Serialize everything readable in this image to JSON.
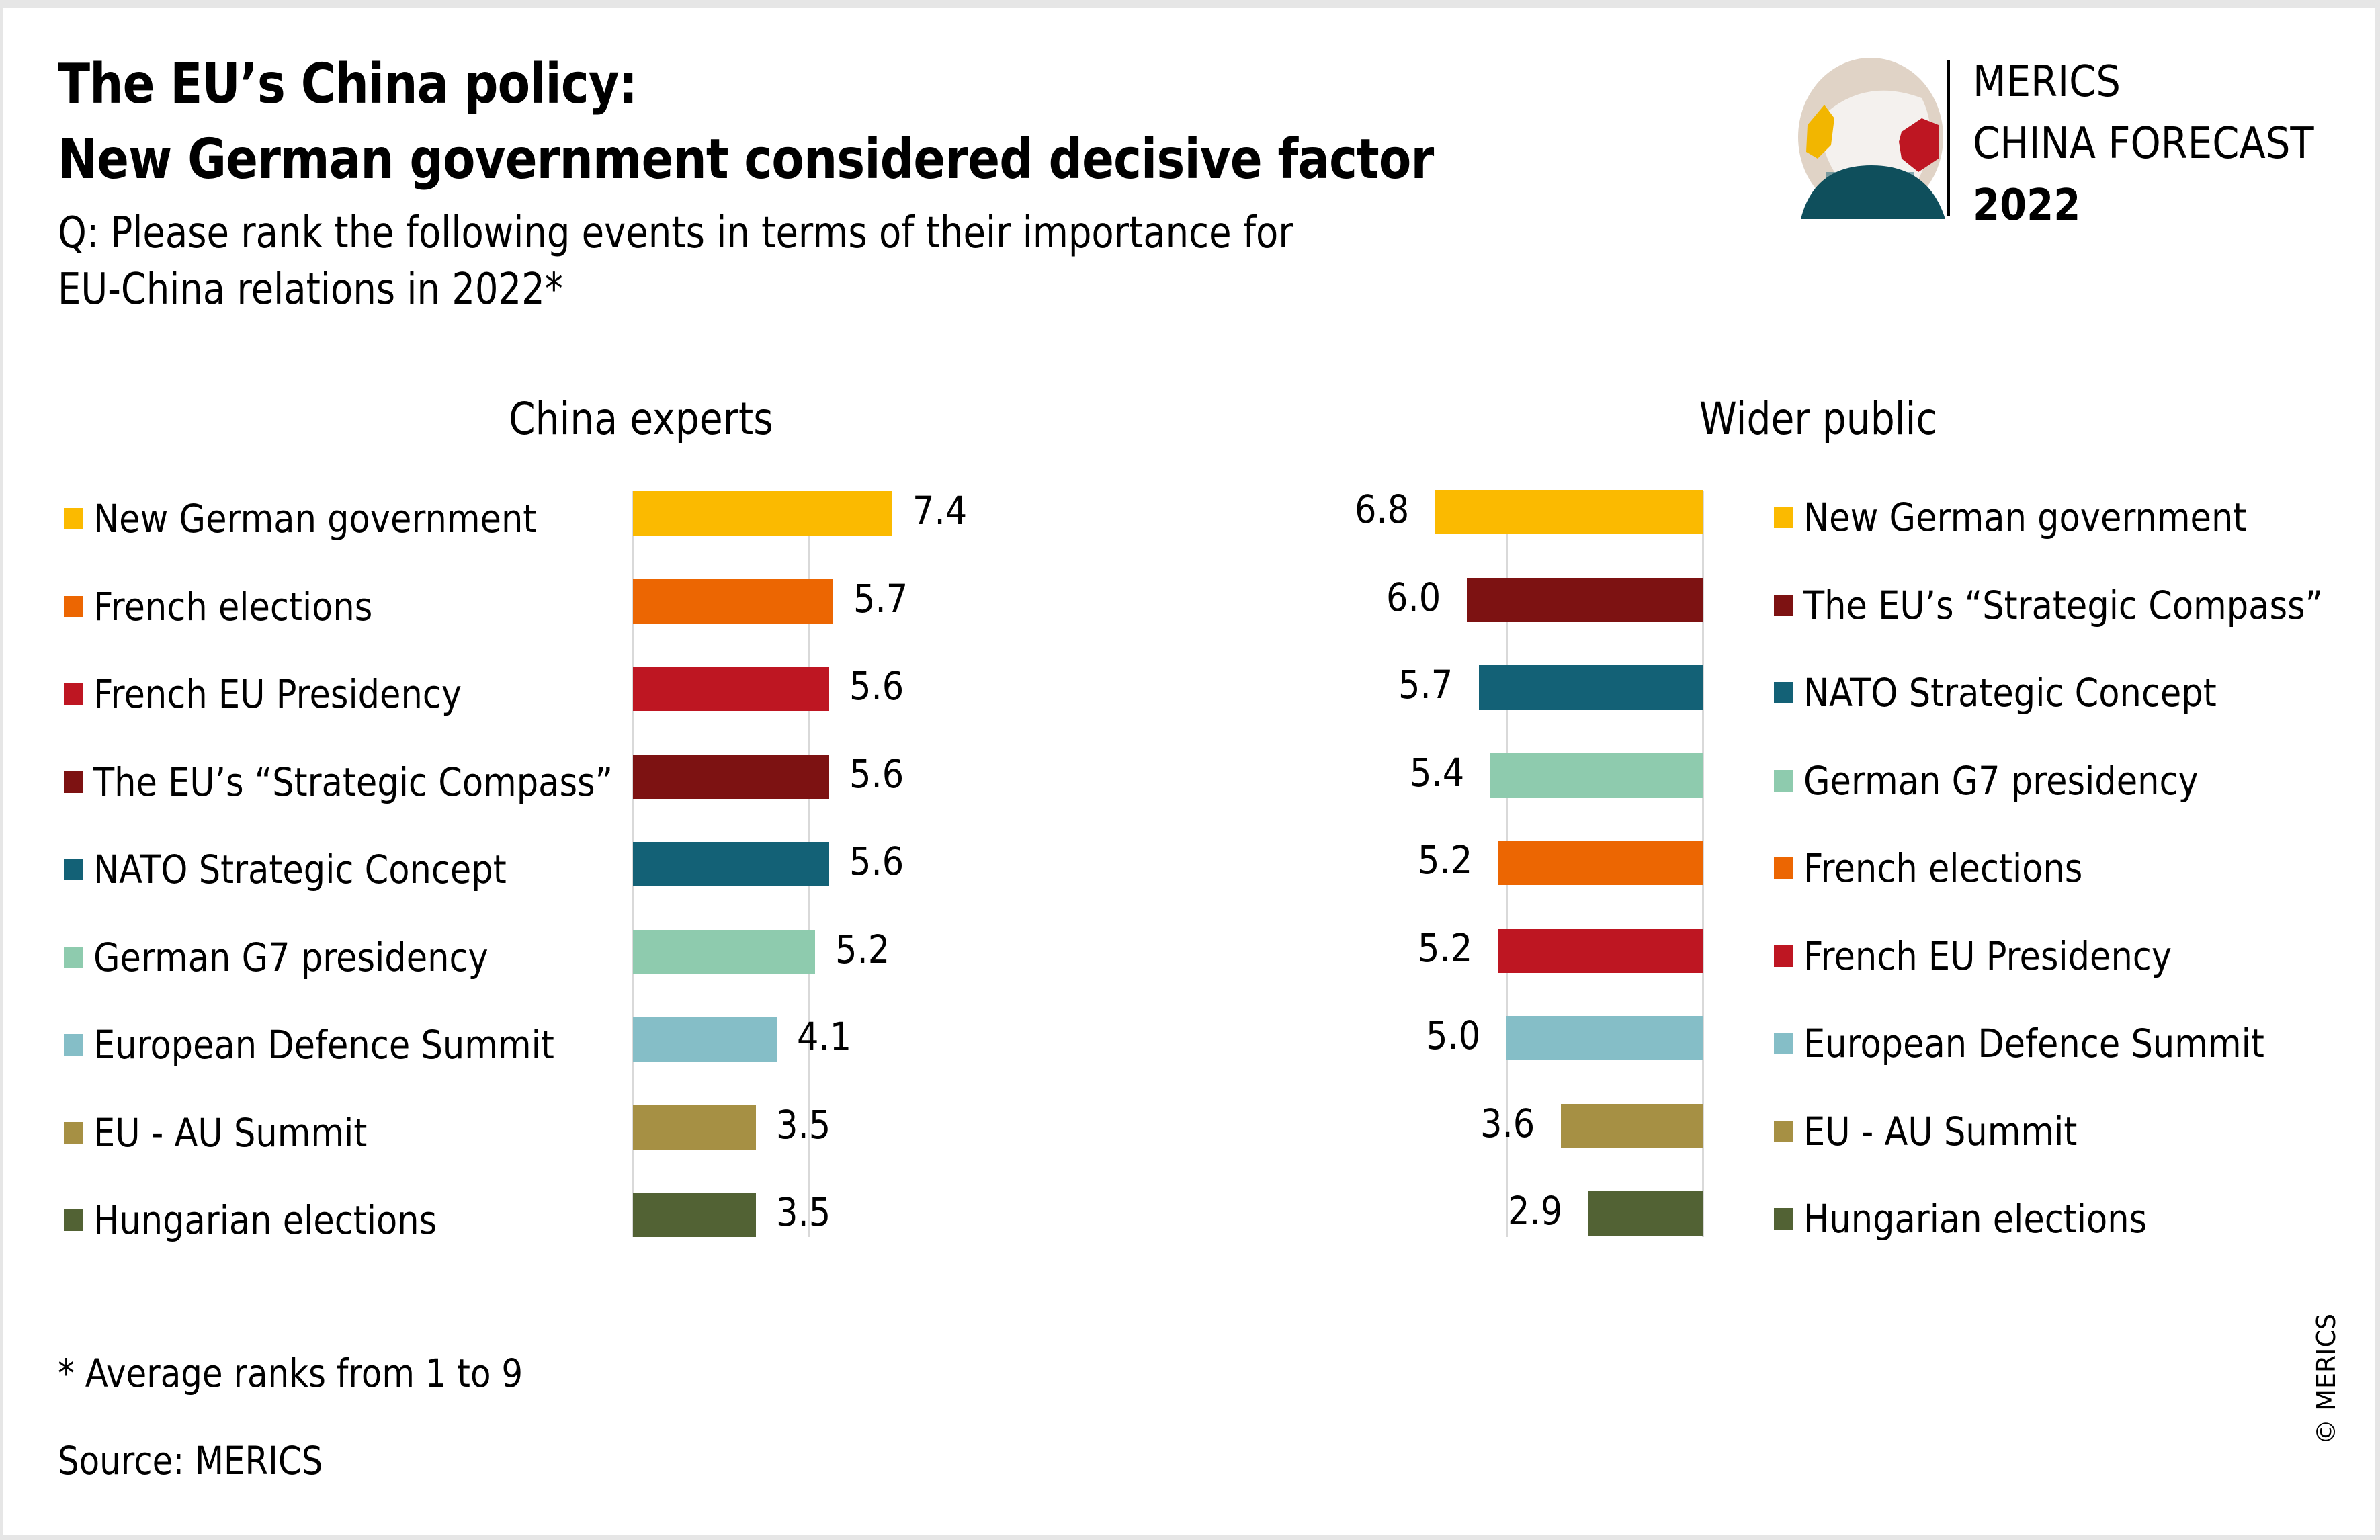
{
  "header": {
    "title_line1": "The EU’s China policy:",
    "title_line2": "New German government considered decisive factor",
    "subtitle_line1": "Q: Please rank the following events in terms of their importance for",
    "subtitle_line2": "EU-China relations in 2022*"
  },
  "logo": {
    "line1": "MERICS",
    "line2": "CHINA FORECAST",
    "line3": "2022",
    "icon": "globe-icon"
  },
  "footer": {
    "note": "* Average ranks from 1 to 9",
    "source": "Source: MERICS",
    "copyright": "© MERICS"
  },
  "chart_data": [
    {
      "type": "bar",
      "orientation": "horizontal",
      "title": "China experts",
      "direction": "left-to-right",
      "xlim": [
        0,
        7.4
      ],
      "gridlines": [
        0,
        5
      ],
      "legend_position": "left",
      "categories": [
        "New German government",
        "French elections",
        "French EU Presidency",
        "The EU’s “Strategic Compass”",
        "NATO Strategic Concept",
        "German G7 presidency",
        "European Defence Summit",
        "EU - AU Summit",
        "Hungarian elections"
      ],
      "values": [
        7.4,
        5.7,
        5.6,
        5.6,
        5.6,
        5.2,
        4.1,
        3.5,
        3.5
      ],
      "labels": [
        "7.4",
        "5.7",
        "5.6",
        "5.6",
        "5.6",
        "5.2",
        "4.1",
        "3.5",
        "3.5"
      ],
      "colors": [
        "#FBBA00",
        "#EC6602",
        "#BE1622",
        "#7D1212",
        "#136176",
        "#8ECBAE",
        "#85BEC7",
        "#A69044",
        "#526234"
      ]
    },
    {
      "type": "bar",
      "orientation": "horizontal",
      "title": "Wider public",
      "direction": "right-to-left",
      "xlim": [
        0,
        6.8
      ],
      "gridlines": [
        0,
        5
      ],
      "legend_position": "right",
      "categories": [
        "New German government",
        "The EU’s “Strategic Compass”",
        "NATO Strategic Concept",
        "German G7 presidency",
        "French elections",
        "French EU Presidency",
        "European Defence Summit",
        "EU - AU Summit",
        "Hungarian elections"
      ],
      "values": [
        6.8,
        6.0,
        5.7,
        5.4,
        5.2,
        5.2,
        5.0,
        3.6,
        2.9
      ],
      "labels": [
        "6.8",
        "6.0",
        "5.7",
        "5.4",
        "5.2",
        "5.2",
        "5.0",
        "3.6",
        "2.9"
      ],
      "colors": [
        "#FBBA00",
        "#7D1212",
        "#136176",
        "#8ECBAE",
        "#EC6602",
        "#BE1622",
        "#85BEC7",
        "#A69044",
        "#526234"
      ]
    }
  ]
}
